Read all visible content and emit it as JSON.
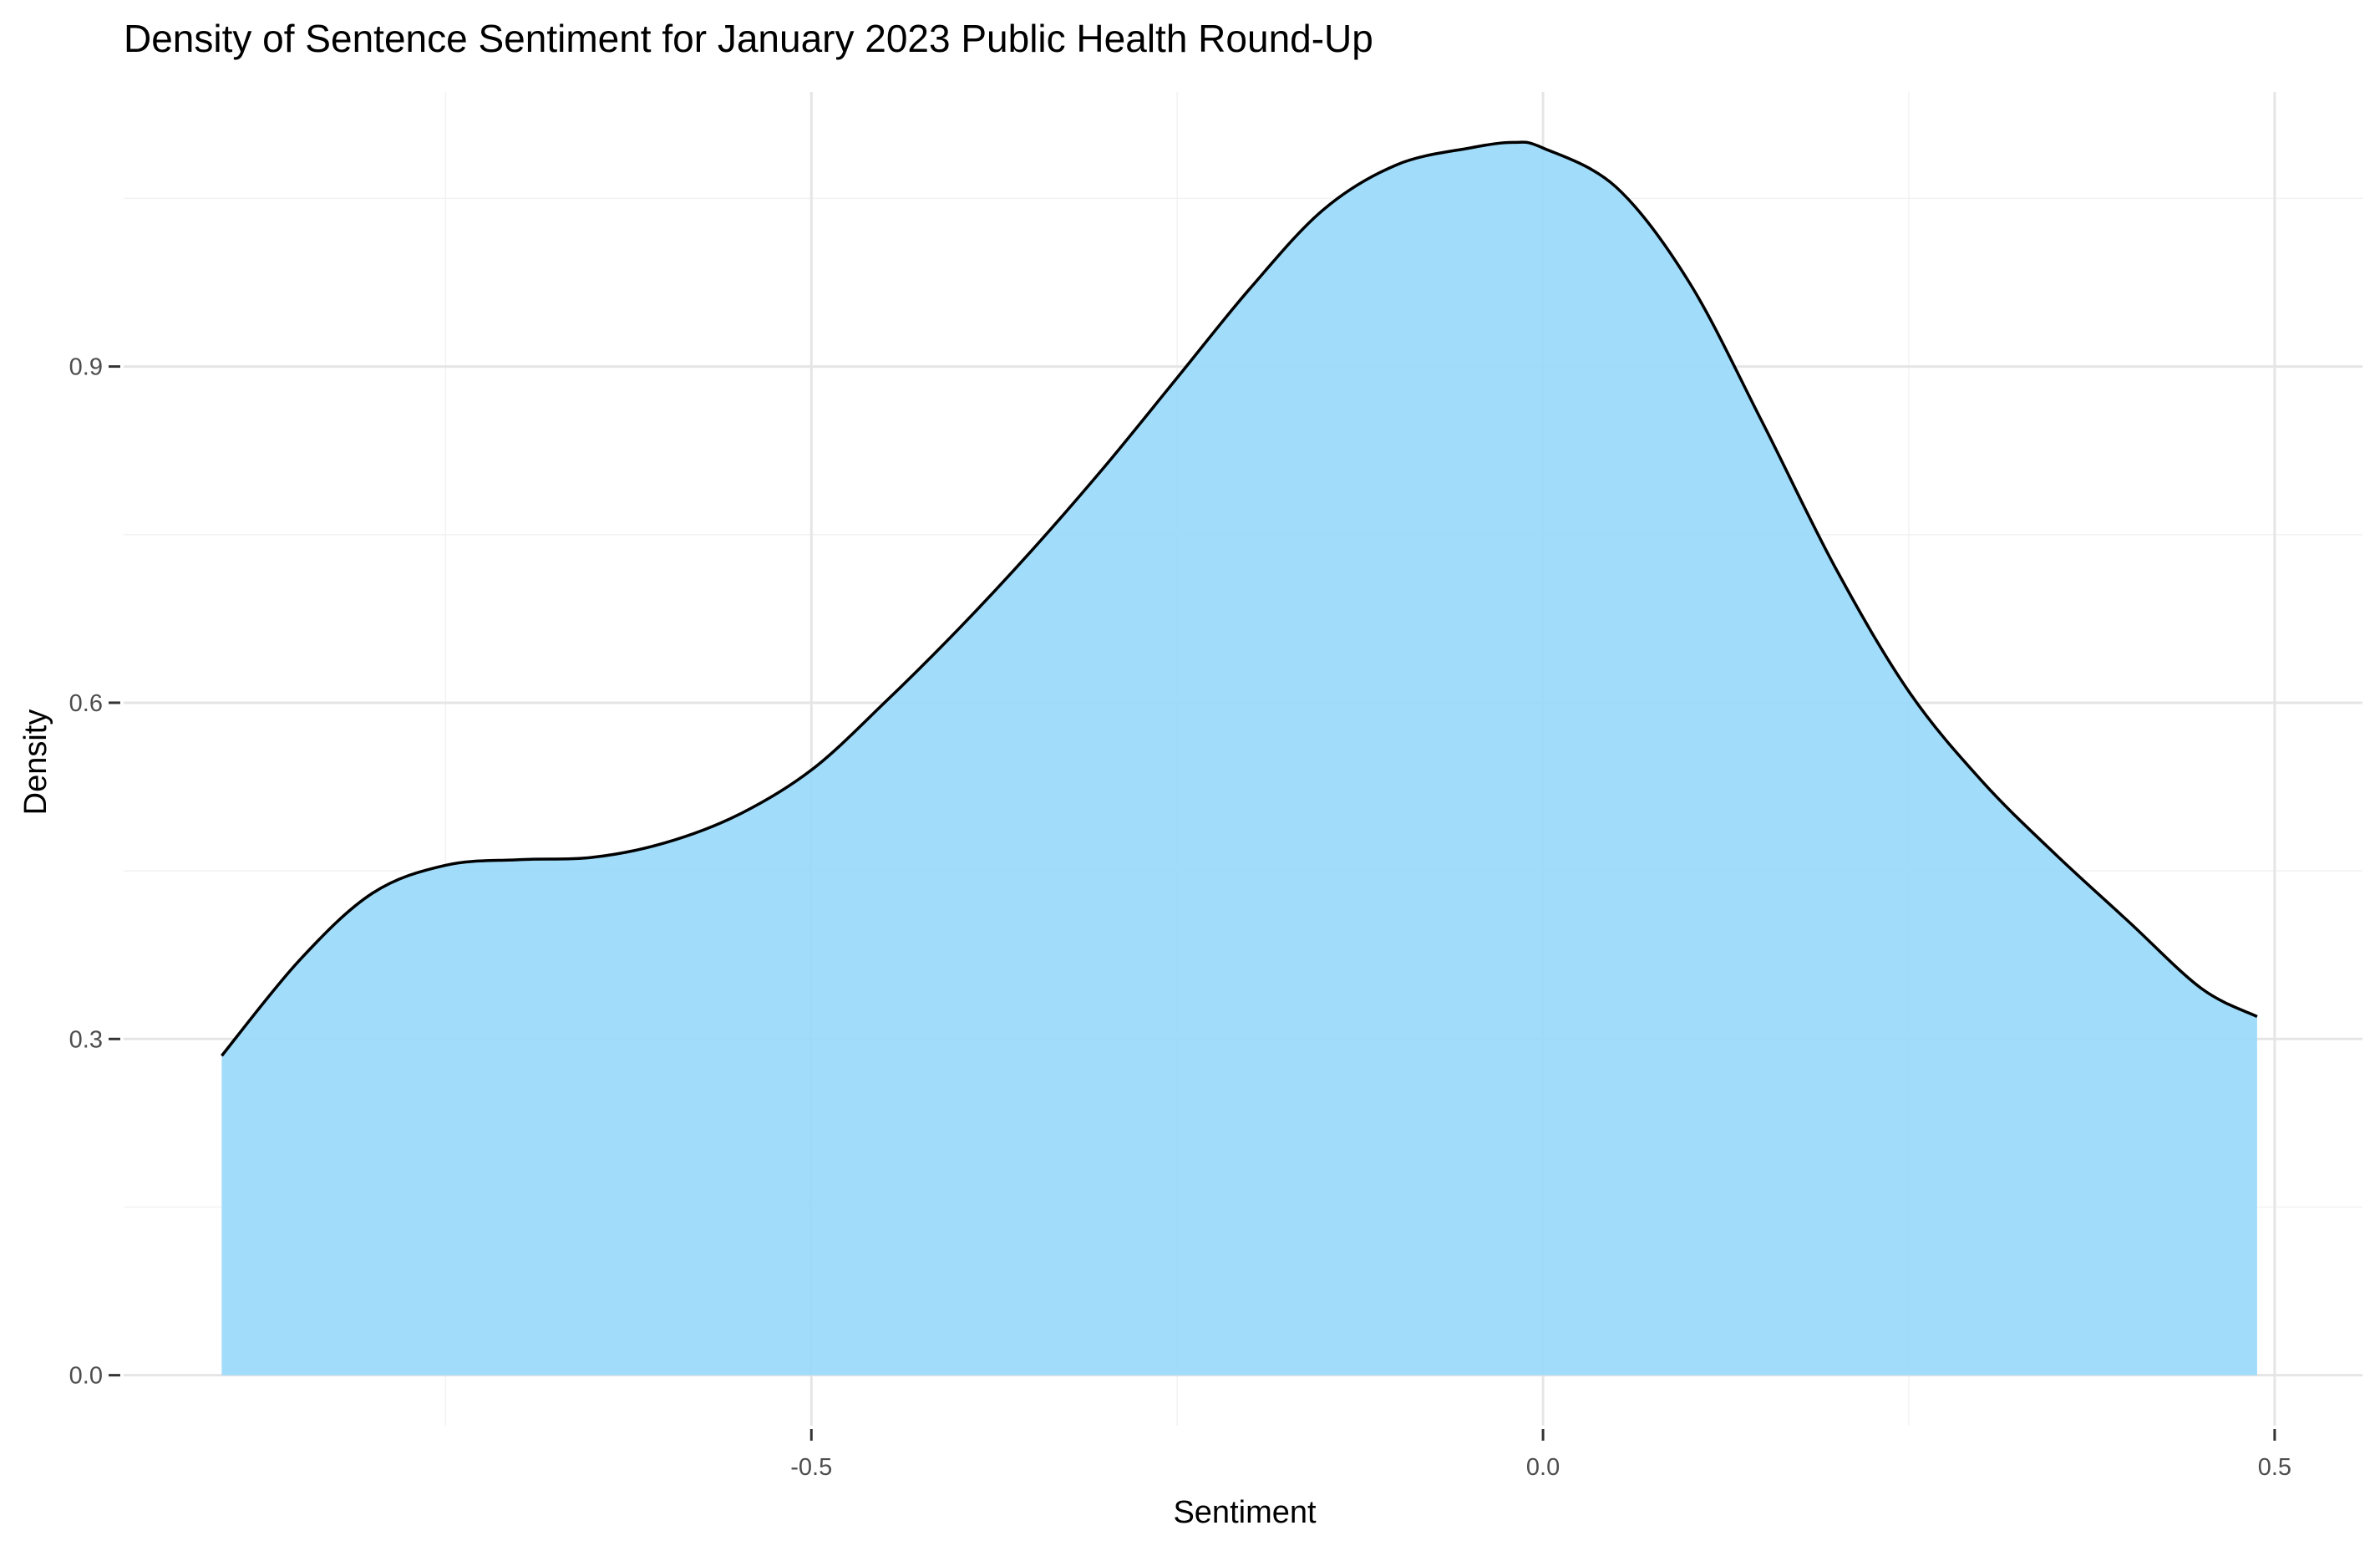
{
  "chart_data": {
    "type": "area",
    "title": "Density of Sentence Sentiment for January 2023 Public Health Round-Up",
    "xlabel": "Sentiment",
    "ylabel": "Density",
    "xlim": [
      -0.97,
      0.56
    ],
    "ylim": [
      -0.045,
      1.145
    ],
    "x_ticks": [
      -0.5,
      0.0,
      0.5
    ],
    "x_tick_labels": [
      "-0.5",
      "0.0",
      "0.5"
    ],
    "y_ticks": [
      0.0,
      0.3,
      0.6,
      0.9
    ],
    "y_tick_labels": [
      "0.0",
      "0.3",
      "0.6",
      "0.9"
    ],
    "grid": true,
    "legend": "none",
    "fill_color": "#99DAFB",
    "line_color": "#000000",
    "series": [
      {
        "x": [
          -0.903,
          -0.85,
          -0.8,
          -0.75,
          -0.7,
          -0.65,
          -0.6,
          -0.55,
          -0.5,
          -0.45,
          -0.4,
          -0.35,
          -0.3,
          -0.25,
          -0.2,
          -0.15,
          -0.1,
          -0.05,
          -0.02,
          0.0,
          0.05,
          0.1,
          0.15,
          0.2,
          0.25,
          0.3,
          0.35,
          0.4,
          0.45,
          0.488
        ],
        "y": [
          0.285,
          0.37,
          0.43,
          0.455,
          0.46,
          0.462,
          0.475,
          0.5,
          0.54,
          0.6,
          0.665,
          0.735,
          0.81,
          0.89,
          0.97,
          1.04,
          1.08,
          1.095,
          1.1,
          1.095,
          1.06,
          0.975,
          0.85,
          0.72,
          0.61,
          0.53,
          0.465,
          0.405,
          0.345,
          0.32
        ]
      }
    ]
  }
}
